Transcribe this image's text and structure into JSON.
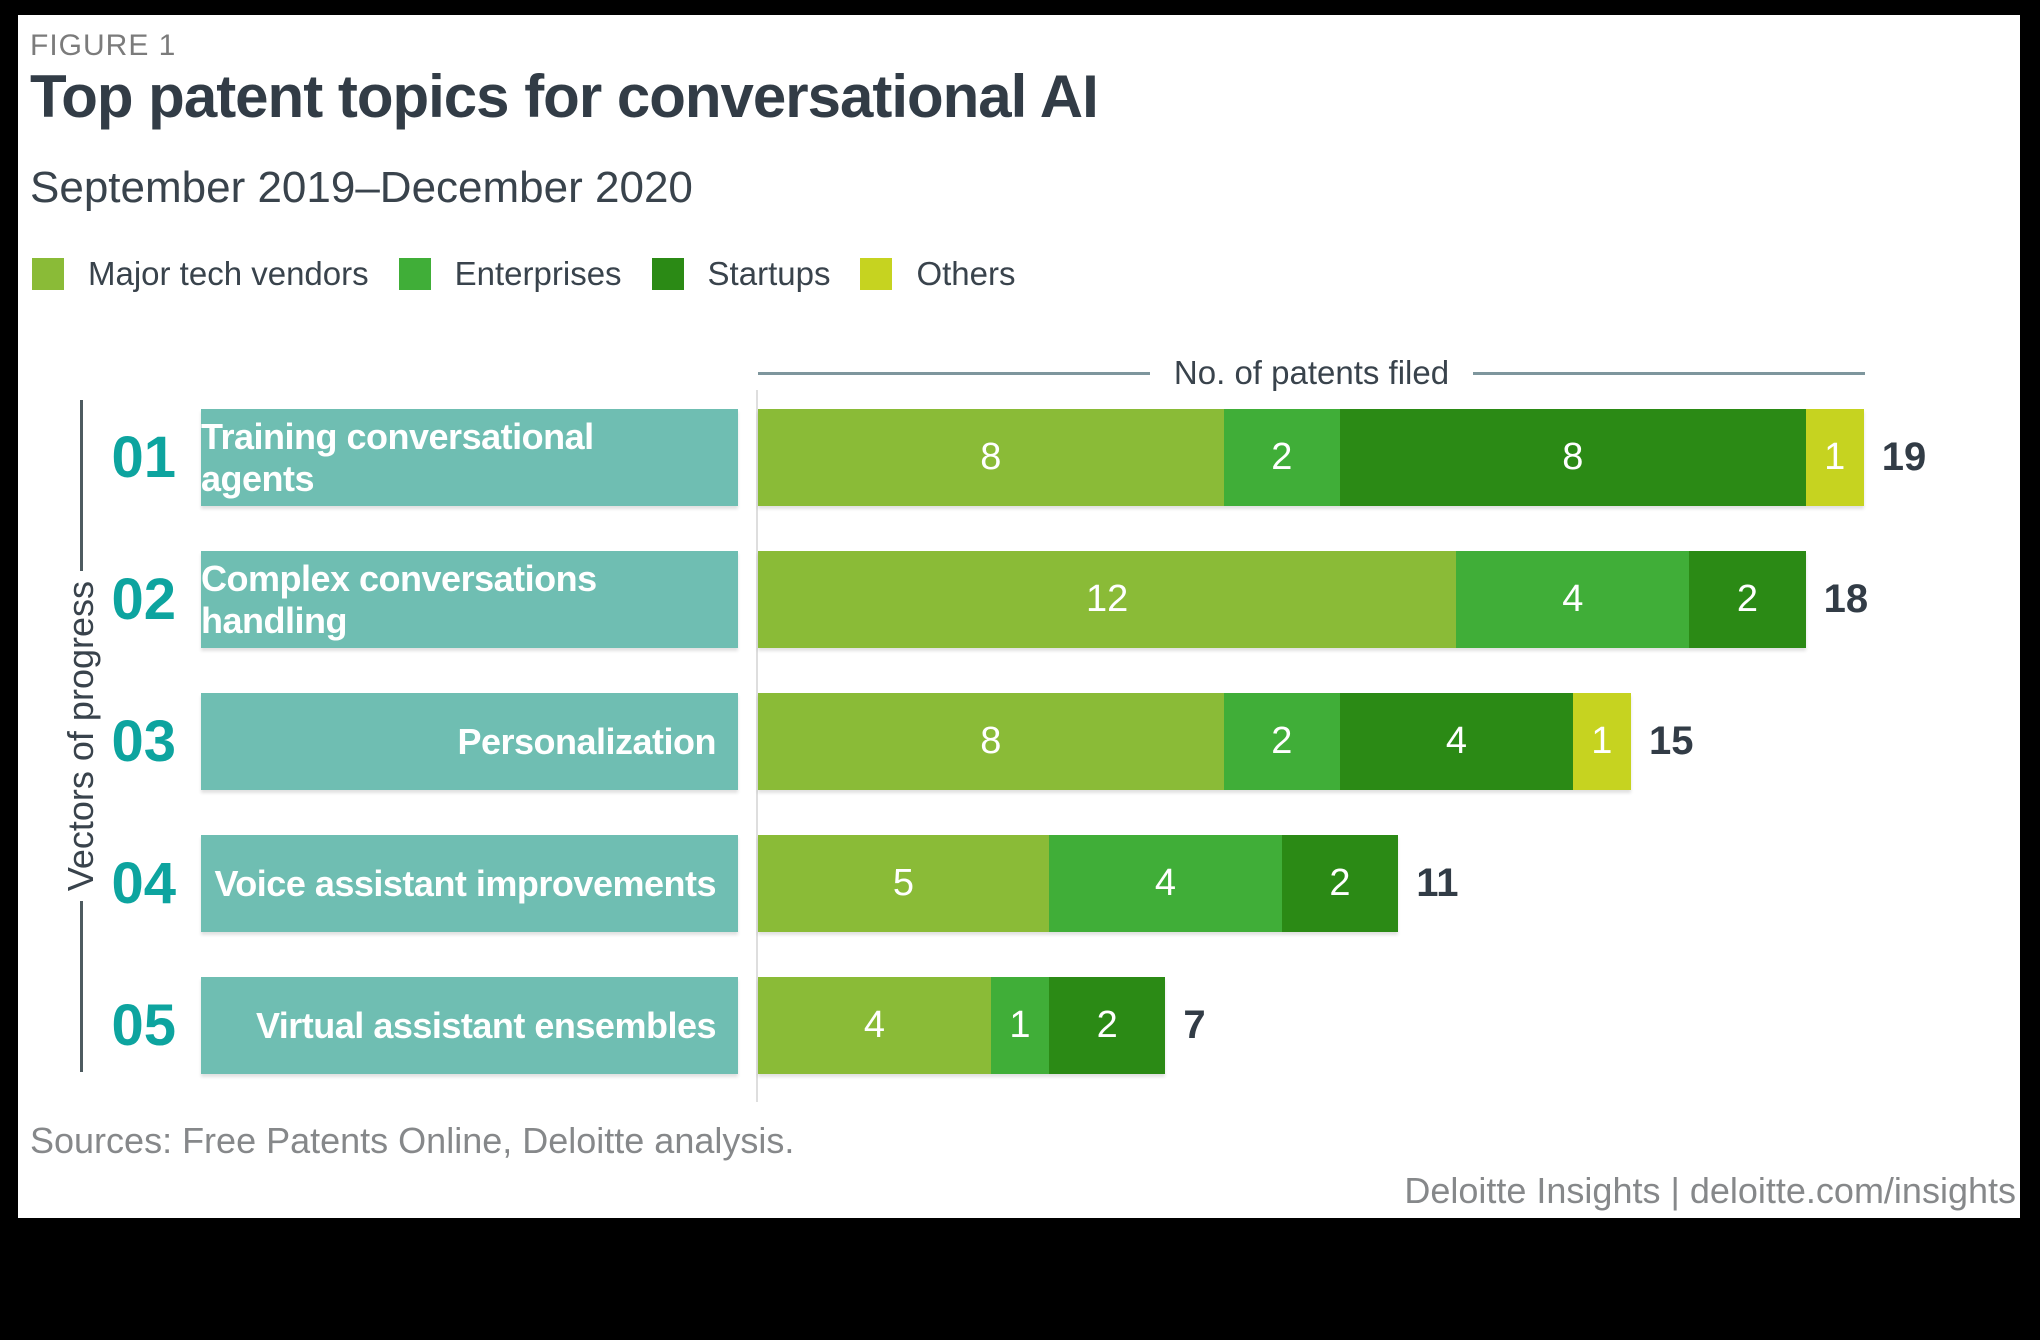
{
  "figure_label": "FIGURE 1",
  "title": "Top patent topics for conversational AI",
  "subtitle": "September 2019–December 2020",
  "axis_top_label": "No. of patents filed",
  "y_axis_label": "Vectors of progress",
  "sources": "Sources: Free Patents Online, Deloitte analysis.",
  "footer": "Deloitte Insights | deloitte.com/insights",
  "colors": {
    "ink": "#323c46",
    "ink2": "#39434c",
    "muted": "#7b7b7b",
    "muted2": "#86888a",
    "teal": "#0da49f",
    "tealbox": "#6fbeb2",
    "axisline": "#7e969d",
    "yline": "#4e5b60"
  },
  "chart_data": {
    "type": "bar",
    "orientation": "horizontal",
    "stacked": true,
    "title": "Top patent topics for conversational AI",
    "subtitle": "September 2019–December 2020",
    "xlabel": "No. of patents filed",
    "ylabel": "Vectors of progress",
    "legend_position": "top",
    "grid": false,
    "xlim": [
      0,
      19
    ],
    "row_numbers": [
      "01",
      "02",
      "03",
      "04",
      "05"
    ],
    "categories": [
      "Training conversational agents",
      "Complex conversations handling",
      "Personalization",
      "Voice assistant improvements",
      "Virtual assistant ensembles"
    ],
    "series": [
      {
        "name": "Major tech vendors",
        "color": "#8abb37",
        "values": [
          8,
          12,
          8,
          5,
          4
        ]
      },
      {
        "name": "Enterprises",
        "color": "#40ae38",
        "values": [
          2,
          4,
          2,
          4,
          1
        ]
      },
      {
        "name": "Startups",
        "color": "#2b8a15",
        "values": [
          8,
          2,
          4,
          2,
          2
        ]
      },
      {
        "name": "Others",
        "color": "#c6d320",
        "values": [
          1,
          0,
          1,
          0,
          0
        ]
      }
    ],
    "totals": [
      19,
      18,
      15,
      11,
      7
    ]
  }
}
